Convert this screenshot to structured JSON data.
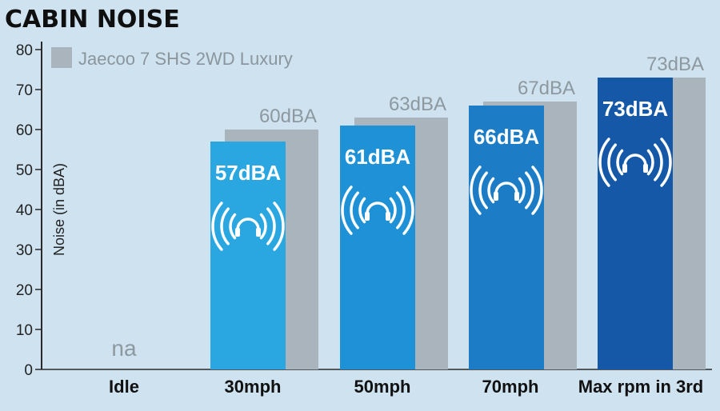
{
  "chart_data": {
    "type": "bar",
    "title": "CABIN NOISE",
    "ylabel": "Noise (in dBA)",
    "ylim": [
      0,
      80
    ],
    "yticks": [
      0,
      10,
      20,
      30,
      40,
      50,
      60,
      70,
      80
    ],
    "categories": [
      "Idle",
      "30mph",
      "50mph",
      "70mph",
      "Max rpm in 3rd"
    ],
    "series": [
      {
        "name": "Jaecoo 7 SHS 2WD Luxury",
        "color": "#a9b4bc",
        "values": [
          null,
          60,
          63,
          67,
          73
        ],
        "labels": [
          "na",
          "60dBA",
          "63dBA",
          "67dBA",
          "73dBA"
        ]
      },
      {
        "values": [
          null,
          57,
          61,
          66,
          73
        ],
        "labels": [
          "",
          "57dBA",
          "61dBA",
          "66dBA",
          "73dBA"
        ],
        "colors": [
          "#2aa6e0",
          "#2aa6e0",
          "#1f91d6",
          "#1c7dc6",
          "#1658a8"
        ],
        "icon": "headphones-sound-icon"
      }
    ],
    "legend_position": "top-left",
    "grid": false
  }
}
